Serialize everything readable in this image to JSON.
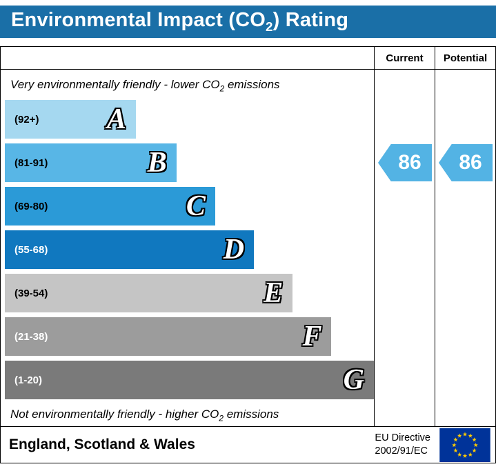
{
  "title": {
    "pre": "Environmental Impact (CO",
    "sub": "2",
    "post": ") Rating"
  },
  "columns": {
    "current": "Current",
    "potential": "Potential"
  },
  "notes": {
    "top": {
      "pre": "Very environmentally friendly - lower CO",
      "sub": "2",
      "post": " emissions"
    },
    "bottom": {
      "pre": "Not environmentally friendly - higher CO",
      "sub": "2",
      "post": " emissions"
    }
  },
  "bands": [
    {
      "letter": "A",
      "range": "(92+)",
      "color": "#a5d8f0",
      "text_color": "#000000",
      "width_pct": 35.5
    },
    {
      "letter": "B",
      "range": "(81-91)",
      "color": "#58b6e6",
      "text_color": "#000000",
      "width_pct": 46.5
    },
    {
      "letter": "C",
      "range": "(69-80)",
      "color": "#2b9ad7",
      "text_color": "#000000",
      "width_pct": 57
    },
    {
      "letter": "D",
      "range": "(55-68)",
      "color": "#1078bf",
      "text_color": "#ffffff",
      "width_pct": 67.5
    },
    {
      "letter": "E",
      "range": "(39-54)",
      "color": "#c5c5c5",
      "text_color": "#000000",
      "width_pct": 78
    },
    {
      "letter": "F",
      "range": "(21-38)",
      "color": "#9c9c9c",
      "text_color": "#ffffff",
      "width_pct": 88.5
    },
    {
      "letter": "G",
      "range": "(1-20)",
      "color": "#7a7a7a",
      "text_color": "#ffffff",
      "width_pct": 100
    }
  ],
  "current": {
    "value": "86",
    "arrow_color": "#53b3e4"
  },
  "potential": {
    "value": "86",
    "arrow_color": "#53b3e4"
  },
  "footer": {
    "region": "England, Scotland & Wales",
    "directive_line1": "EU Directive",
    "directive_line2": "2002/91/EC"
  },
  "colors": {
    "title_bg": "#1a6fa7",
    "title_text": "#ffffff",
    "border": "#000000",
    "eu_flag_bg": "#003399",
    "eu_star": "#ffcc00"
  },
  "chart_data": {
    "type": "bar",
    "title": "Environmental Impact (CO2) Rating",
    "categories": [
      "A",
      "B",
      "C",
      "D",
      "E",
      "F",
      "G"
    ],
    "band_ranges": [
      "(92+)",
      "(81-91)",
      "(69-80)",
      "(55-68)",
      "(39-54)",
      "(21-38)",
      "(1-20)"
    ],
    "band_colors": [
      "#a5d8f0",
      "#58b6e6",
      "#2b9ad7",
      "#1078bf",
      "#c5c5c5",
      "#9c9c9c",
      "#7a7a7a"
    ],
    "bar_relative_lengths": [
      35.5,
      46.5,
      57,
      67.5,
      78,
      88.5,
      100
    ],
    "series": [
      {
        "name": "Current",
        "value": 86,
        "band": "B"
      },
      {
        "name": "Potential",
        "value": 86,
        "band": "B"
      }
    ],
    "value_range": [
      1,
      100
    ],
    "top_label": "Very environmentally friendly - lower CO2 emissions",
    "bottom_label": "Not environmentally friendly - higher CO2 emissions",
    "region_label": "England, Scotland & Wales",
    "directive": "EU Directive 2002/91/EC",
    "legend_position": "none",
    "grid": false
  }
}
